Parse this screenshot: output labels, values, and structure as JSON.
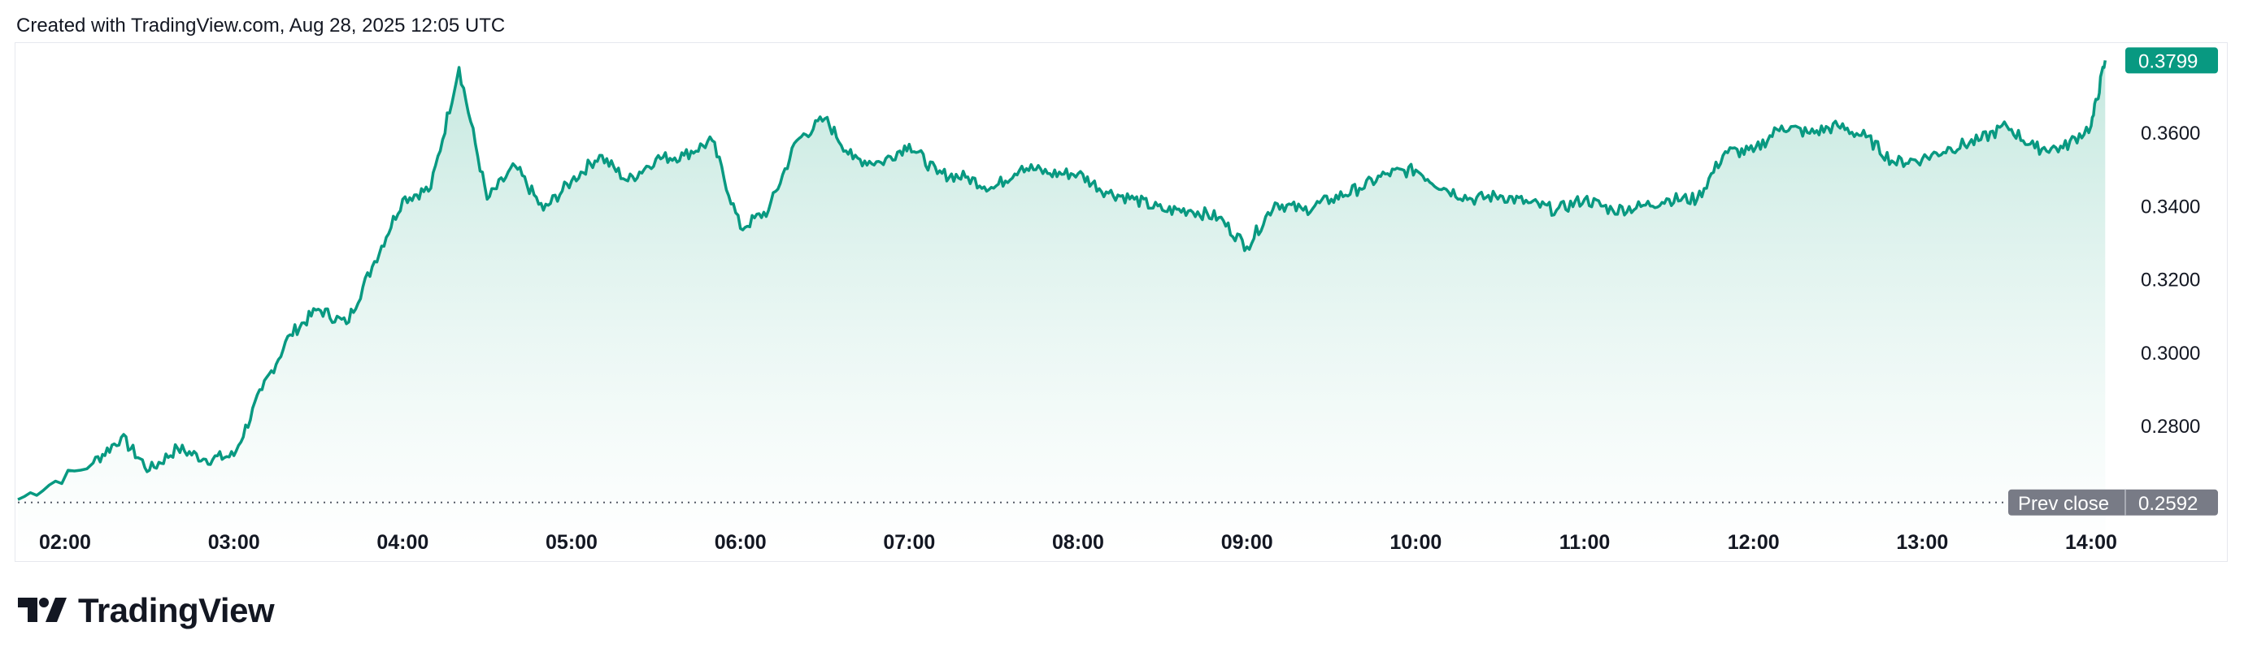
{
  "header": {
    "caption": "Created with TradingView.com, Aug 28, 2025 12:05 UTC"
  },
  "branding": {
    "name": "TradingView",
    "logo_icon": "tradingview-logo-icon"
  },
  "colors": {
    "line": "#089981",
    "area_top": "#bfe6dc",
    "area_bottom": "#ffffff",
    "last_tag": "#089981",
    "prev_tag": "#787b86"
  },
  "chart_data": {
    "type": "area",
    "title": "",
    "ylim": [
      0.2545,
      0.3842
    ],
    "yticks": [
      "0.2800",
      "0.3000",
      "0.3200",
      "0.3400",
      "0.3600"
    ],
    "xticks": [
      "02:00",
      "03:00",
      "04:00",
      "05:00",
      "06:00",
      "07:00",
      "08:00",
      "09:00",
      "10:00",
      "11:00",
      "12:00",
      "13:00",
      "14:00"
    ],
    "grid": false,
    "last_price": {
      "label": "0.3799",
      "value": 0.3799
    },
    "prev_close": {
      "label": "Prev close",
      "value_label": "0.2592",
      "value": 0.2592
    },
    "series": [
      {
        "x": [
          "02:00",
          "02:10",
          "02:20",
          "02:30",
          "02:40",
          "02:50",
          "03:00",
          "03:10",
          "03:20",
          "03:30",
          "03:40",
          "03:50",
          "04:00",
          "04:10",
          "04:20",
          "04:30",
          "04:40",
          "04:50",
          "05:00",
          "05:10",
          "05:20",
          "05:30",
          "05:40",
          "05:50",
          "06:00",
          "06:10",
          "06:20",
          "06:30",
          "06:40",
          "06:50",
          "07:00",
          "07:10",
          "07:20",
          "07:30",
          "07:40",
          "07:50",
          "08:00",
          "08:10",
          "08:20",
          "08:30",
          "08:40",
          "08:50",
          "09:00",
          "09:10",
          "09:20",
          "09:30",
          "09:40",
          "09:50",
          "10:00",
          "10:10",
          "10:20",
          "10:30",
          "10:40",
          "10:50",
          "11:00",
          "11:10",
          "11:20",
          "11:30",
          "11:40",
          "11:50",
          "12:00",
          "12:10",
          "12:20",
          "12:30",
          "12:40",
          "12:50",
          "13:00",
          "13:10",
          "13:20",
          "13:30",
          "13:40",
          "13:50",
          "14:00",
          "14:05"
        ],
        "values": [
          0.26,
          0.27,
          0.277,
          0.268,
          0.274,
          0.271,
          0.272,
          0.29,
          0.305,
          0.312,
          0.308,
          0.325,
          0.342,
          0.345,
          0.378,
          0.342,
          0.351,
          0.339,
          0.347,
          0.354,
          0.347,
          0.353,
          0.354,
          0.358,
          0.334,
          0.339,
          0.358,
          0.364,
          0.353,
          0.352,
          0.357,
          0.349,
          0.348,
          0.345,
          0.351,
          0.349,
          0.349,
          0.344,
          0.342,
          0.339,
          0.339,
          0.337,
          0.329,
          0.341,
          0.339,
          0.342,
          0.345,
          0.349,
          0.35,
          0.345,
          0.342,
          0.343,
          0.341,
          0.339,
          0.342,
          0.339,
          0.34,
          0.342,
          0.342,
          0.355,
          0.355,
          0.362,
          0.36,
          0.362,
          0.359,
          0.352,
          0.353,
          0.356,
          0.358,
          0.362,
          0.356,
          0.356,
          0.362,
          0.3799
        ]
      }
    ]
  }
}
